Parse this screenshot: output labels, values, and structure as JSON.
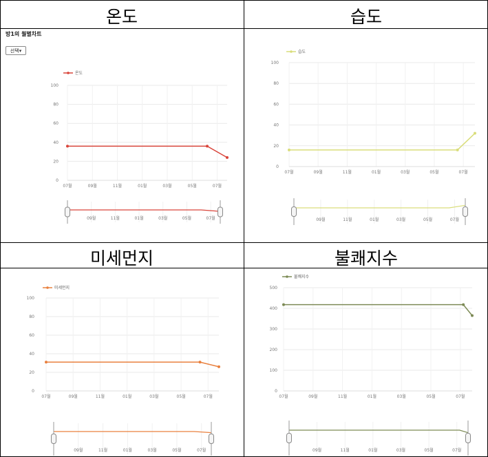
{
  "cells": {
    "titles": [
      "온도",
      "습도",
      "미세먼지",
      "불쾌지수"
    ]
  },
  "panel1": {
    "page_title": "방1의 월별차트",
    "select_label": "선택"
  },
  "colors": {
    "temp": "#d9443a",
    "hum": "#d9dd7a",
    "dust": "#e9803e",
    "disc": "#7c8a55",
    "grid": "#e9e9e9",
    "axis_text": "#777777"
  },
  "chart_data": [
    {
      "type": "line",
      "title": "",
      "legend": "온도",
      "x": [
        "07월",
        "09월",
        "11월",
        "01월",
        "03월",
        "05월",
        "07월"
      ],
      "series": [
        {
          "name": "온도",
          "points": [
            [
              0,
              36
            ],
            [
              5.6,
              36
            ],
            [
              6.4,
              24
            ]
          ]
        }
      ],
      "yticks": [
        0,
        20,
        40,
        60,
        80,
        100
      ],
      "ylim": [
        0,
        100
      ]
    },
    {
      "type": "line",
      "title": "",
      "legend": "습도",
      "x": [
        "07월",
        "09월",
        "11월",
        "01월",
        "03월",
        "05월",
        "07월"
      ],
      "series": [
        {
          "name": "습도",
          "points": [
            [
              0,
              16
            ],
            [
              5.8,
              16
            ],
            [
              6.4,
              32
            ]
          ]
        }
      ],
      "yticks": [
        0,
        20,
        40,
        60,
        80,
        100
      ],
      "ylim": [
        0,
        100
      ]
    },
    {
      "type": "line",
      "title": "",
      "legend": "미세먼지",
      "x": [
        "07월",
        "09월",
        "11월",
        "01월",
        "03월",
        "05월",
        "07월"
      ],
      "series": [
        {
          "name": "미세먼지",
          "points": [
            [
              0,
              31
            ],
            [
              5.7,
              31
            ],
            [
              6.4,
              26
            ]
          ]
        }
      ],
      "yticks": [
        0,
        20,
        40,
        60,
        80,
        100
      ],
      "ylim": [
        0,
        100
      ]
    },
    {
      "type": "line",
      "title": "",
      "legend": "불쾌지수",
      "x": [
        "07월",
        "09월",
        "11월",
        "01월",
        "03월",
        "05월",
        "07월"
      ],
      "series": [
        {
          "name": "불쾌지수",
          "points": [
            [
              0,
              418
            ],
            [
              6.1,
              418
            ],
            [
              6.4,
              365
            ]
          ]
        }
      ],
      "yticks": [
        0,
        100,
        200,
        300,
        400,
        500
      ],
      "ylim": [
        0,
        500
      ]
    }
  ]
}
